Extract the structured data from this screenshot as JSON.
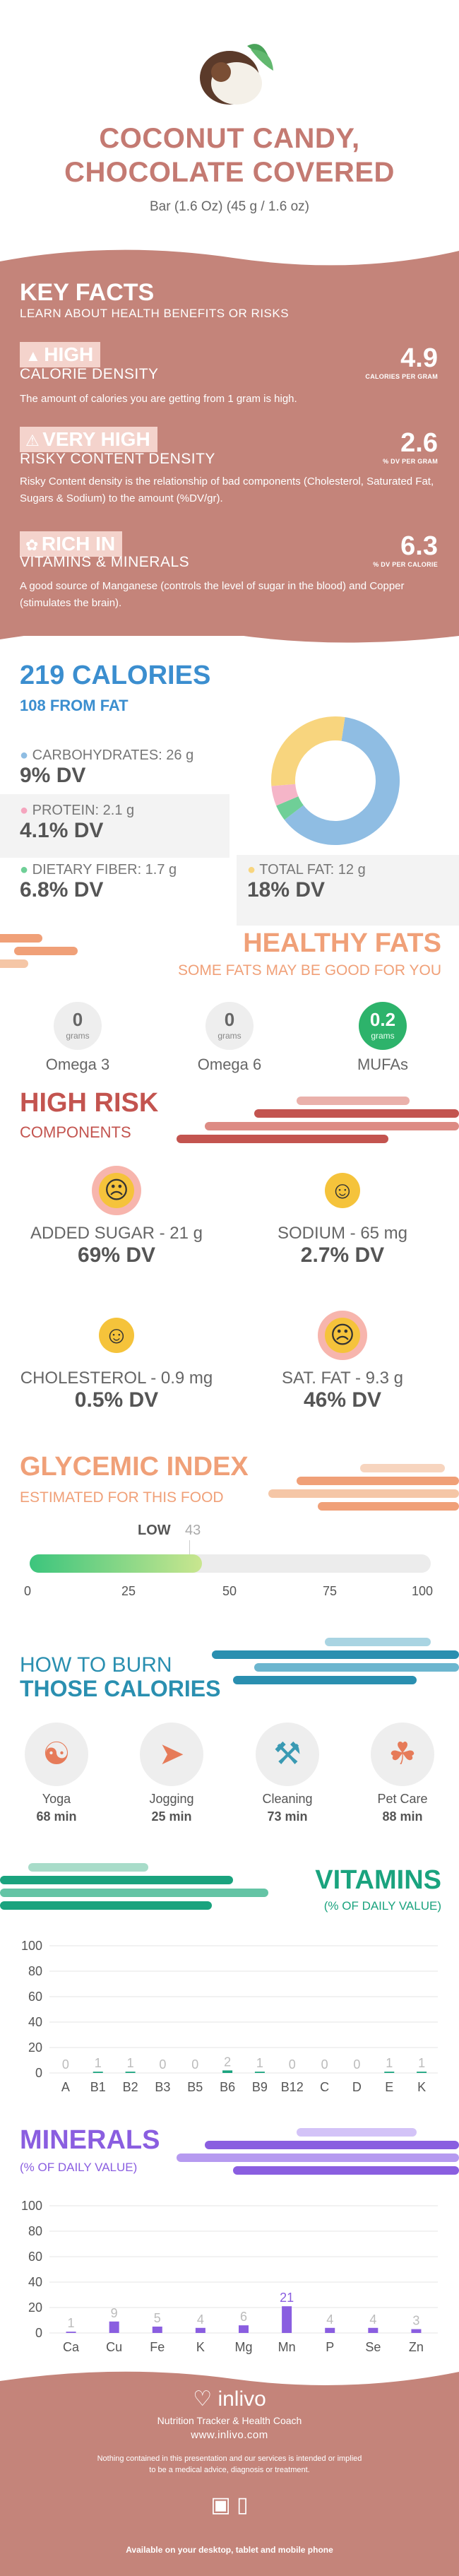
{
  "header": {
    "title_line1": "COCONUT CANDY,",
    "title_line2": "CHOCOLATE COVERED",
    "serving": "Bar (1.6 Oz) (45 g / 1.6 oz)"
  },
  "key_facts": {
    "title": "KEY FACTS",
    "subtitle": "LEARN ABOUT HEALTH BENEFITS OR RISKS",
    "items": [
      {
        "badge": "HIGH",
        "label": "CALORIE DENSITY",
        "value": "4.9",
        "unit": "CALORIES PER GRAM",
        "text": "The amount of calories you are getting from 1 gram is high.",
        "icon": "flame-icon"
      },
      {
        "badge": "VERY HIGH",
        "label": "RISKY CONTENT DENSITY",
        "value": "2.6",
        "unit": "% DV PER GRAM",
        "text": "Risky Content density is the relationship of bad components (Cholesterol, Saturated Fat, Sugars & Sodium) to the amount (%DV/gr).",
        "icon": "warning-icon"
      },
      {
        "badge": "RICH  IN",
        "label": "VITAMINS & MINERALS",
        "value": "6.3",
        "unit": "% DV PER CALORIE",
        "text": "A good source of Manganese (controls the level of sugar in the blood) and Copper (stimulates the brain).",
        "icon": "leaf-icon"
      }
    ]
  },
  "calories": {
    "title": "219 CALORIES",
    "subtitle": "108 FROM FAT",
    "carbs_label": "CARBOHYDRATES: 26 g",
    "carbs_dv": "9% DV",
    "protein_label": "PROTEIN: 2.1 g",
    "protein_dv": "4.1% DV",
    "fiber_label": "DIETARY FIBER: 1.7 g",
    "fiber_dv": "6.8% DV",
    "fat_label": "TOTAL FAT: 12 g",
    "fat_dv": "18% DV",
    "donut": [
      {
        "name": "carbs",
        "value": 26,
        "color": "#8fbde3"
      },
      {
        "name": "fiber",
        "value": 1.7,
        "color": "#6fcf97"
      },
      {
        "name": "protein",
        "value": 2.1,
        "color": "#f5b5c8"
      },
      {
        "name": "fat",
        "value": 12,
        "color": "#f8d57e"
      }
    ]
  },
  "healthy_fats": {
    "title": "HEALTHY FATS",
    "subtitle": "SOME FATS MAY BE GOOD FOR YOU",
    "unit": "grams",
    "items": [
      {
        "value": "0",
        "label": "Omega 3"
      },
      {
        "value": "0",
        "label": "Omega 6"
      },
      {
        "value": "0.2",
        "label": "MUFAs"
      }
    ]
  },
  "high_risk": {
    "title": "HIGH RISK",
    "subtitle": "COMPONENTS",
    "items": [
      {
        "label": "ADDED SUGAR - 21 g",
        "dv": "69% DV",
        "face": "sad"
      },
      {
        "label": "SODIUM - 65 mg",
        "dv": "2.7% DV",
        "face": "happy"
      },
      {
        "label": "CHOLESTEROL - 0.9 mg",
        "dv": "0.5% DV",
        "face": "happy"
      },
      {
        "label": "SAT. FAT - 9.3 g",
        "dv": "46% DV",
        "face": "sad"
      }
    ]
  },
  "glycemic": {
    "title": "GLYCEMIC INDEX",
    "subtitle": "ESTIMATED FOR THIS FOOD",
    "level": "LOW",
    "value": 43,
    "ticks": [
      "0",
      "25",
      "50",
      "75",
      "100"
    ]
  },
  "burn": {
    "title1": "HOW TO BURN",
    "title2": "THOSE CALORIES",
    "items": [
      {
        "label": "Yoga",
        "time": "68 min",
        "icon": "yoga-icon"
      },
      {
        "label": "Jogging",
        "time": "25 min",
        "icon": "jogging-icon"
      },
      {
        "label": "Cleaning",
        "time": "73 min",
        "icon": "cleaning-icon"
      },
      {
        "label": "Pet Care",
        "time": "88 min",
        "icon": "pet-care-icon"
      }
    ]
  },
  "chart_data": [
    {
      "type": "bar",
      "title": "VITAMINS",
      "subtitle": "(% OF DAILY VALUE)",
      "categories": [
        "A",
        "B1",
        "B2",
        "B3",
        "B5",
        "B6",
        "B9",
        "B12",
        "C",
        "D",
        "E",
        "K"
      ],
      "values": [
        0,
        1,
        1,
        0,
        0,
        2,
        1,
        0,
        0,
        0,
        1,
        1
      ],
      "yticks": [
        "0",
        "20",
        "40",
        "60",
        "80",
        "100"
      ],
      "ylim": [
        0,
        100
      ],
      "color": "#1aa37e"
    },
    {
      "type": "bar",
      "title": "MINERALS",
      "subtitle": "(% OF DAILY VALUE)",
      "categories": [
        "Ca",
        "Cu",
        "Fe",
        "K",
        "Mg",
        "Mn",
        "P",
        "Se",
        "Zn"
      ],
      "values": [
        1,
        9,
        5,
        4,
        6,
        21,
        4,
        4,
        3
      ],
      "yticks": [
        "0",
        "20",
        "40",
        "60",
        "80",
        "100"
      ],
      "ylim": [
        0,
        100
      ],
      "color": "#8a5ee0"
    }
  ],
  "footer": {
    "brand": "inlivo",
    "tagline": "Nutrition Tracker & Health Coach",
    "url": "www.inlivo.com",
    "disclaimer1": "Nothing contained in this presentation and our services is intended or implied",
    "disclaimer2": "to be a medical advice, diagnosis or treatment.",
    "available": "Available on your desktop, tablet and mobile phone"
  }
}
